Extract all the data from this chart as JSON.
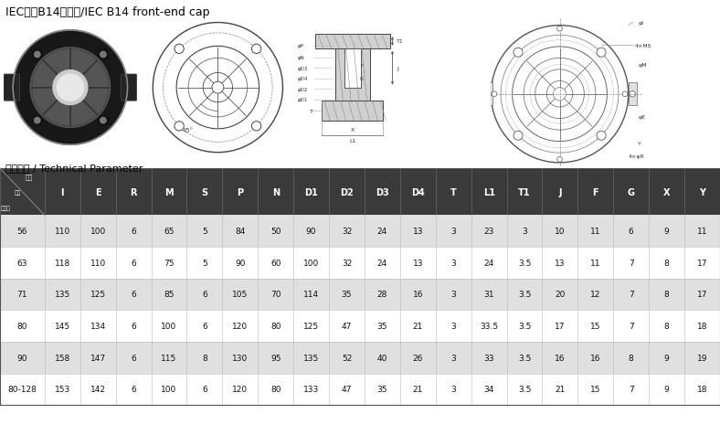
{
  "title": "IEC系列B14前端盖/IEC B14 front-end cap",
  "subtitle": "技术参数 / Technical Parameter",
  "header_bg": "#3a3a3a",
  "header_fg": "#ffffff",
  "row_odd_bg": "#ffffff",
  "row_even_bg": "#e0e0e0",
  "columns": [
    "I",
    "E",
    "R",
    "M",
    "S",
    "P",
    "N",
    "D1",
    "D2",
    "D3",
    "D4",
    "T",
    "L1",
    "T1",
    "J",
    "F",
    "G",
    "X",
    "Y"
  ],
  "rows": [
    {
      "name": "56",
      "values": [
        110,
        100,
        6,
        65,
        5,
        84,
        50,
        90,
        32,
        24,
        13,
        3,
        23,
        3,
        10,
        11,
        6,
        9,
        11
      ]
    },
    {
      "name": "63",
      "values": [
        118,
        110,
        6,
        75,
        5,
        90,
        60,
        100,
        32,
        24,
        13,
        3,
        24,
        3.5,
        13,
        11,
        7,
        8,
        17
      ]
    },
    {
      "name": "71",
      "values": [
        135,
        125,
        6,
        85,
        6,
        105,
        70,
        114,
        35,
        28,
        16,
        3,
        31,
        3.5,
        20,
        12,
        7,
        8,
        17
      ]
    },
    {
      "name": "80",
      "values": [
        145,
        134,
        6,
        100,
        6,
        120,
        80,
        125,
        47,
        35,
        21,
        3,
        33.5,
        3.5,
        17,
        15,
        7,
        8,
        18
      ]
    },
    {
      "name": "90",
      "values": [
        158,
        147,
        6,
        115,
        8,
        130,
        95,
        135,
        52,
        40,
        26,
        3,
        33,
        3.5,
        16,
        16,
        8,
        9,
        19
      ]
    },
    {
      "name": "80-128",
      "values": [
        153,
        142,
        6,
        100,
        6,
        120,
        80,
        133,
        47,
        35,
        21,
        3,
        34,
        3.5,
        21,
        15,
        7,
        9,
        18
      ]
    }
  ],
  "fig_width": 7.88,
  "fig_height": 4.77,
  "title_fontsize": 9,
  "subtitle_fontsize": 8,
  "table_fontsize": 6.5,
  "header_fontsize": 7
}
